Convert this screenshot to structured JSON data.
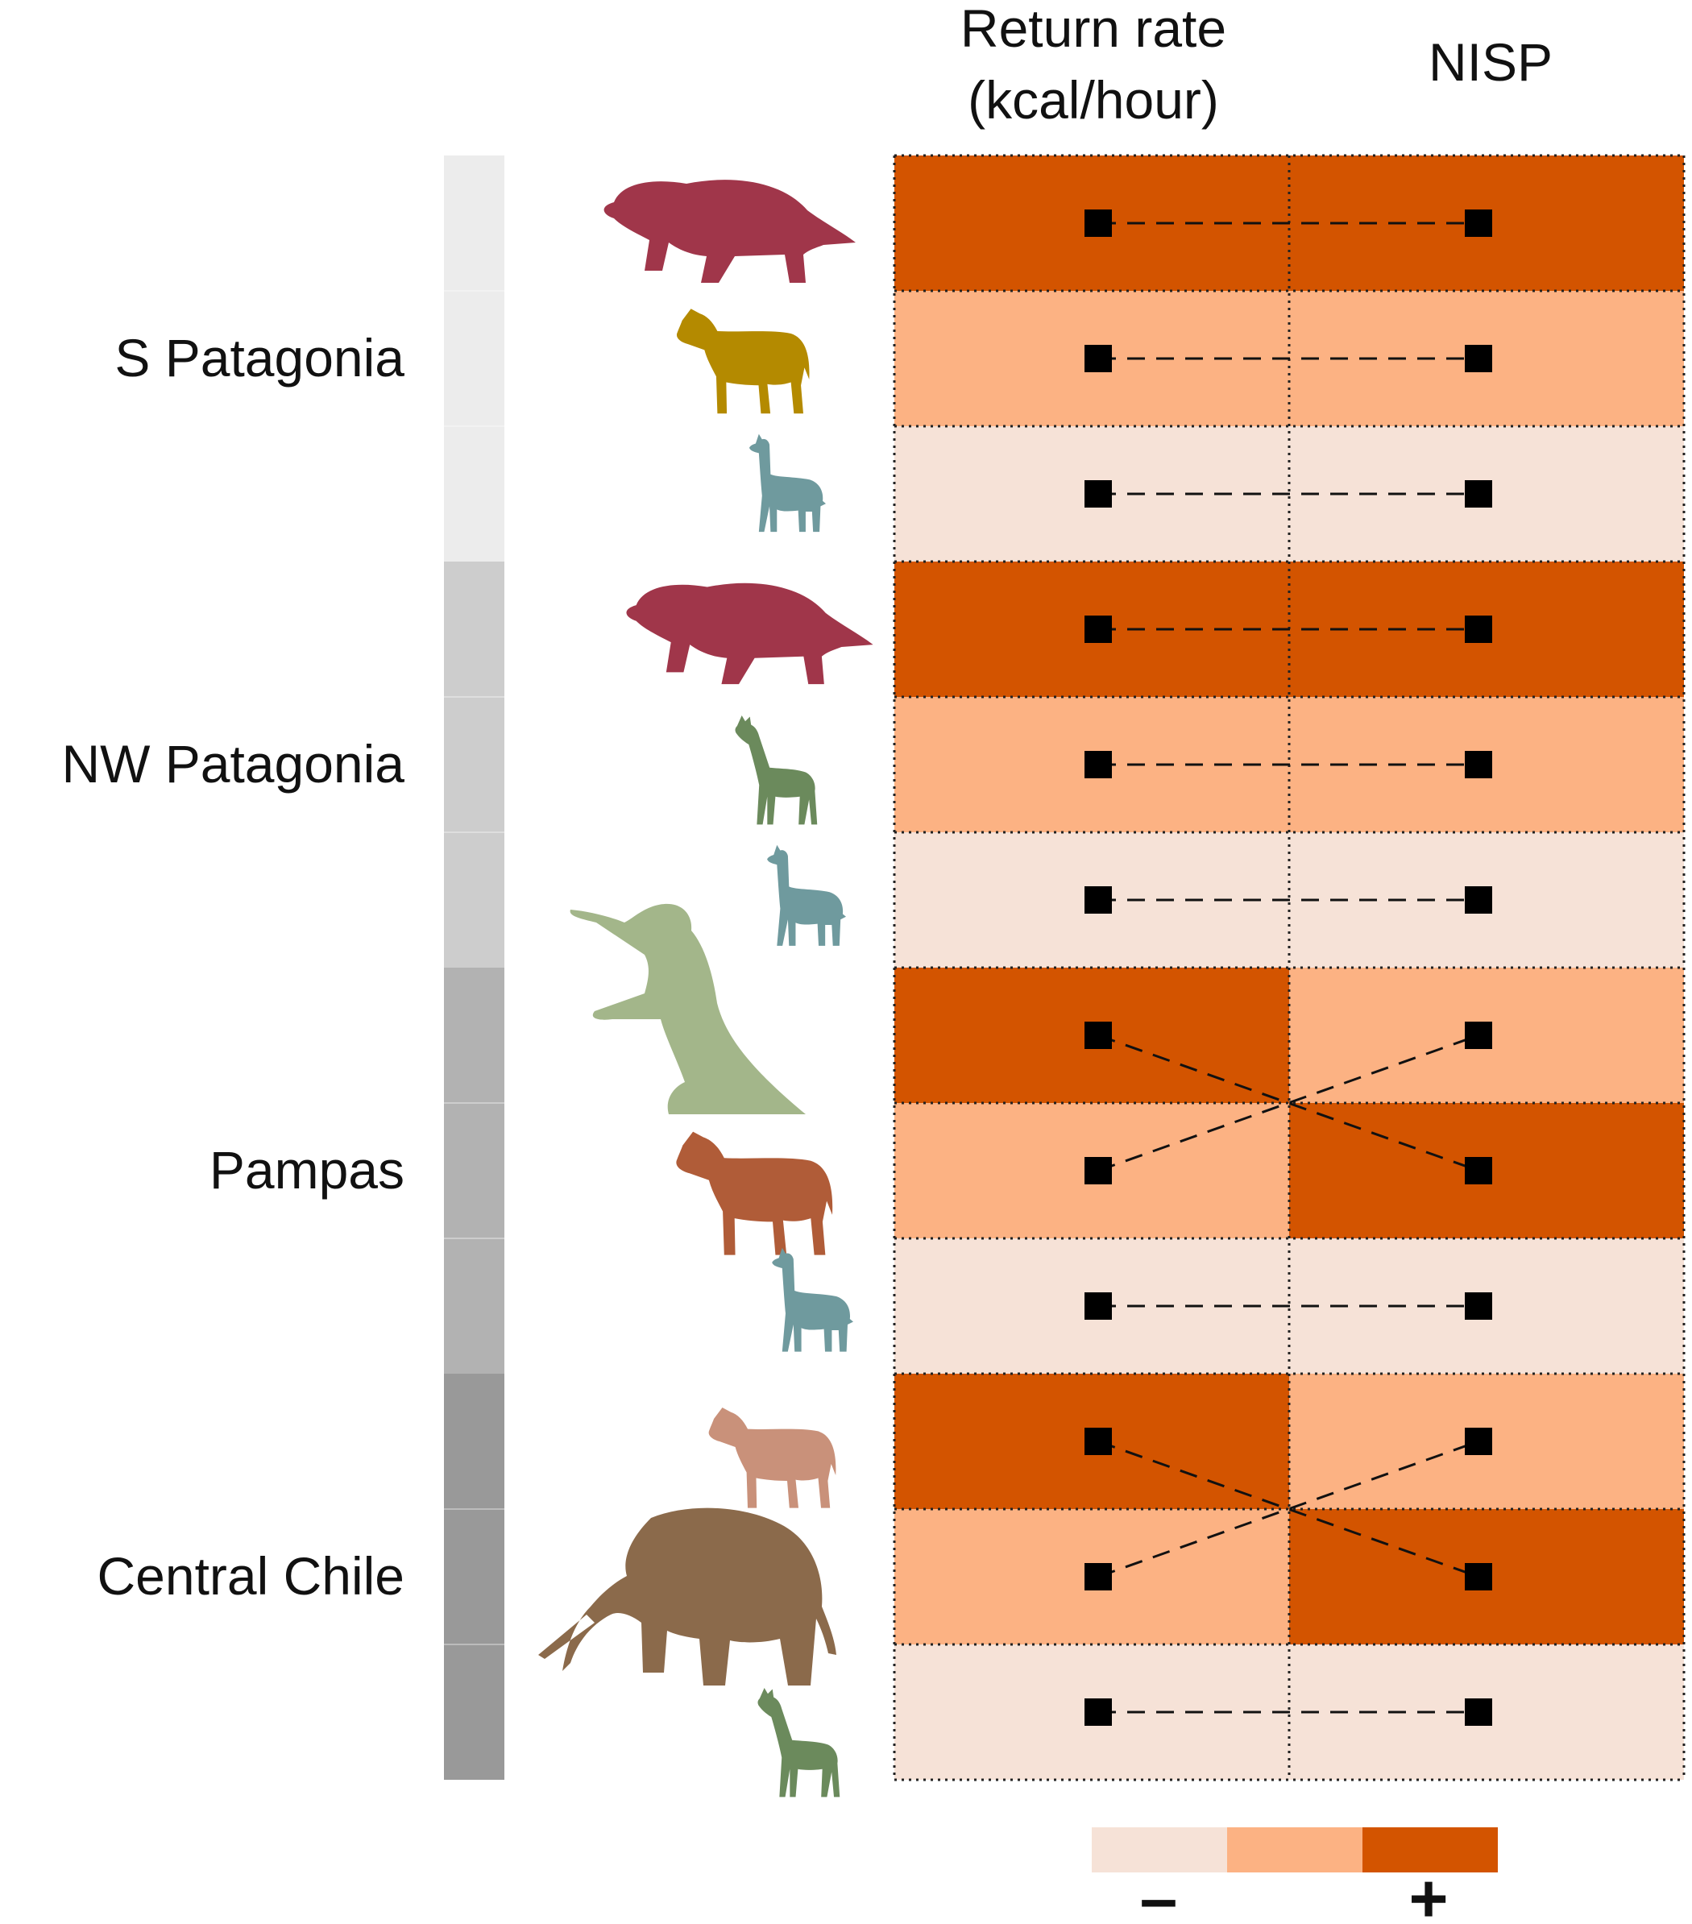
{
  "headers": {
    "return_rate_line1": "Return rate",
    "return_rate_line2": "(kcal/hour)",
    "nisp": "NISP"
  },
  "regions": [
    {
      "label": "S Patagonia",
      "shade": "#ececec"
    },
    {
      "label": "NW Patagonia",
      "shade": "#cdcdcd"
    },
    {
      "label": "Pampas",
      "shade": "#b2b2b2"
    },
    {
      "label": "Central Chile",
      "shade": "#999999"
    }
  ],
  "legend": {
    "minus": "–",
    "plus": "+",
    "levels": [
      "#f6e2d7",
      "#fcb283",
      "#d35400"
    ]
  },
  "chart_data": {
    "type": "table",
    "description_columns": [
      "Return rate (kcal/hour)",
      "NISP"
    ],
    "levels": [
      "low",
      "medium",
      "high"
    ],
    "rows": [
      {
        "region": "S Patagonia",
        "taxon": "ground sloth",
        "icon": "ground-sloth-icon",
        "color": "#a0364a",
        "return_rate": 3,
        "nisp": 3
      },
      {
        "region": "S Patagonia",
        "taxon": "horse",
        "icon": "horse-icon",
        "color": "#b48a00",
        "return_rate": 2,
        "nisp": 2
      },
      {
        "region": "S Patagonia",
        "taxon": "guanaco",
        "icon": "guanaco-icon",
        "color": "#6f9a9e",
        "return_rate": 1,
        "nisp": 1
      },
      {
        "region": "NW Patagonia",
        "taxon": "ground sloth",
        "icon": "ground-sloth-icon",
        "color": "#a0364a",
        "return_rate": 3,
        "nisp": 3
      },
      {
        "region": "NW Patagonia",
        "taxon": "deer",
        "icon": "deer-icon",
        "color": "#6b8a5c",
        "return_rate": 2,
        "nisp": 2
      },
      {
        "region": "NW Patagonia",
        "taxon": "guanaco",
        "icon": "guanaco-icon",
        "color": "#6f9a9e",
        "return_rate": 1,
        "nisp": 1
      },
      {
        "region": "Pampas",
        "taxon": "giant ground sloth",
        "icon": "giant-sloth-icon",
        "color": "#a3b68a",
        "return_rate": 3,
        "nisp": 2
      },
      {
        "region": "Pampas",
        "taxon": "horse",
        "icon": "horse-icon",
        "color": "#b05c38",
        "return_rate": 2,
        "nisp": 3
      },
      {
        "region": "Pampas",
        "taxon": "guanaco",
        "icon": "guanaco-icon",
        "color": "#6f9a9e",
        "return_rate": 1,
        "nisp": 1
      },
      {
        "region": "Central Chile",
        "taxon": "horse",
        "icon": "horse-icon",
        "color": "#c9917a",
        "return_rate": 3,
        "nisp": 2
      },
      {
        "region": "Central Chile",
        "taxon": "gomphothere",
        "icon": "gomphothere-icon",
        "color": "#8b6a4b",
        "return_rate": 2,
        "nisp": 3
      },
      {
        "region": "Central Chile",
        "taxon": "deer",
        "icon": "deer-icon",
        "color": "#6b8a5c",
        "return_rate": 1,
        "nisp": 1
      }
    ]
  }
}
